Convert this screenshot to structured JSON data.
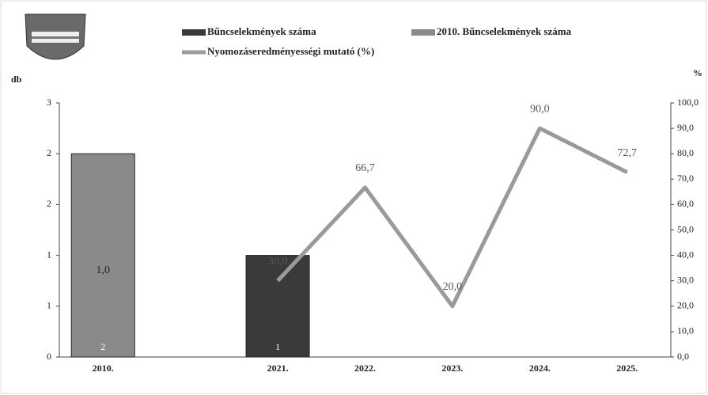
{
  "chart_data": {
    "type": "bar-line",
    "y_axis_label": "db",
    "y2_axis_label": "%",
    "categories": [
      "2010.",
      null,
      "2021.",
      "2022.",
      "2023.",
      "2024.",
      "2025."
    ],
    "series": [
      {
        "name": "Bűncselekmények száma",
        "color": "#3a3a3a",
        "type": "bar",
        "values": [
          null,
          null,
          1,
          null,
          null,
          null,
          null
        ]
      },
      {
        "name": "2010. Bűncselekmények száma",
        "color": "#8a8a8a",
        "type": "bar",
        "values": [
          2,
          null,
          null,
          null,
          null,
          null,
          null
        ]
      },
      {
        "name": "Nyomozáseredményességi mutató (%)",
        "color": "#9a9a9a",
        "type": "line",
        "axis": "y2",
        "values": [
          null,
          null,
          30,
          66.7,
          20,
          90,
          72.7
        ],
        "value_labels": [
          null,
          null,
          "30,0",
          "66,7",
          "20,0",
          "90,0",
          "72,7"
        ]
      }
    ],
    "annotations": [
      "1,0"
    ],
    "ylim": [
      0,
      2.5
    ],
    "yticks": [
      0,
      {
        "value": 0.5,
        "label": "1"
      },
      1,
      {
        "value": 1.5,
        "label": "2"
      },
      2,
      {
        "value": 2.5,
        "label": "3"
      }
    ],
    "y2lim": [
      0,
      100
    ],
    "y2ticks": [
      {
        "value": 0,
        "label": "0,0"
      },
      {
        "value": 10,
        "label": "10,0"
      },
      {
        "value": 20,
        "label": "20,0"
      },
      {
        "value": 30,
        "label": "30,0"
      },
      {
        "value": 40,
        "label": "40,0"
      },
      {
        "value": 50,
        "label": "50,0"
      },
      {
        "value": 60,
        "label": "60,0"
      },
      {
        "value": 70,
        "label": "70,0"
      },
      {
        "value": 80,
        "label": "80,0"
      },
      {
        "value": 90,
        "label": "90,0"
      },
      {
        "value": 100,
        "label": "100,0"
      }
    ]
  }
}
